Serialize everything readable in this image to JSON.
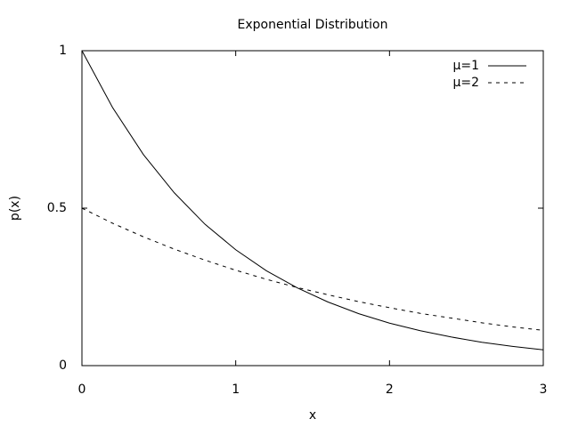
{
  "chart_data": {
    "type": "line",
    "title": "Exponential Distribution",
    "x_label": "x",
    "y_label": "p(x)",
    "x": [
      0,
      0.2,
      0.4,
      0.6,
      0.8,
      1.0,
      1.2,
      1.4,
      1.6,
      1.8,
      2.0,
      2.2,
      2.4,
      2.6,
      2.8,
      3.0
    ],
    "series": [
      {
        "name": "μ=1",
        "color": "#000000",
        "style": "solid",
        "values": [
          1,
          0.819,
          0.67,
          0.549,
          0.449,
          0.368,
          0.301,
          0.247,
          0.202,
          0.165,
          0.135,
          0.111,
          0.091,
          0.074,
          0.061,
          0.05
        ]
      },
      {
        "name": "μ=2",
        "color": "#000000",
        "style": "dashed",
        "values": [
          0.5,
          0.452,
          0.409,
          0.37,
          0.335,
          0.303,
          0.274,
          0.248,
          0.225,
          0.203,
          0.184,
          0.166,
          0.151,
          0.136,
          0.123,
          0.112
        ]
      }
    ],
    "xlim": [
      0,
      3
    ],
    "ylim": [
      0,
      1
    ],
    "xticks": [
      0,
      1,
      2,
      3
    ],
    "yticks": [
      0,
      0.5,
      1
    ],
    "grid": false,
    "legend": "top-right"
  }
}
